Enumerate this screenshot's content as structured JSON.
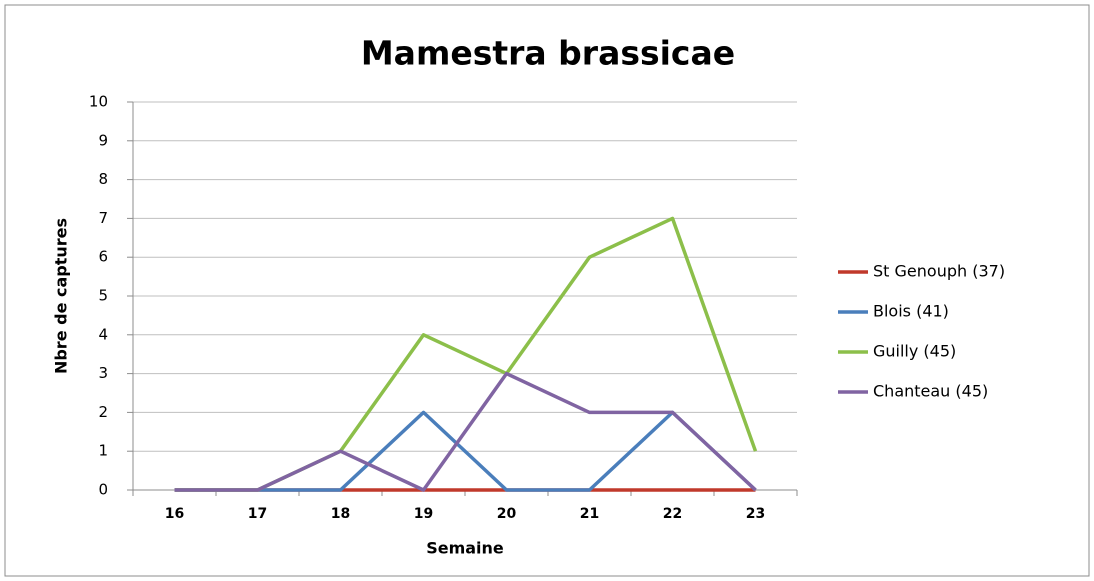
{
  "chart_data": {
    "type": "line",
    "title": "Mamestra brassicae",
    "xlabel": "Semaine",
    "ylabel": "Nbre de captures",
    "categories": [
      "16",
      "17",
      "18",
      "19",
      "20",
      "21",
      "22",
      "23"
    ],
    "series": [
      {
        "name": "St Genouph (37)",
        "color": "#c0392b",
        "values": [
          0,
          0,
          0,
          0,
          0,
          0,
          0,
          0
        ]
      },
      {
        "name": "Blois (41)",
        "color": "#4a7ebb",
        "values": [
          0,
          0,
          0,
          2,
          0,
          0,
          2,
          0
        ]
      },
      {
        "name": "Guilly (45)",
        "color": "#8cbf4a",
        "values": [
          0,
          0,
          1,
          4,
          3,
          6,
          7,
          1
        ]
      },
      {
        "name": "Chanteau (45)",
        "color": "#8064a2",
        "values": [
          0,
          0,
          1,
          0,
          3,
          2,
          2,
          0
        ]
      }
    ],
    "ylim": [
      0,
      10
    ],
    "yticks": [
      0,
      1,
      2,
      3,
      4,
      5,
      6,
      7,
      8,
      9,
      10
    ],
    "grid": true,
    "legend": "right"
  }
}
